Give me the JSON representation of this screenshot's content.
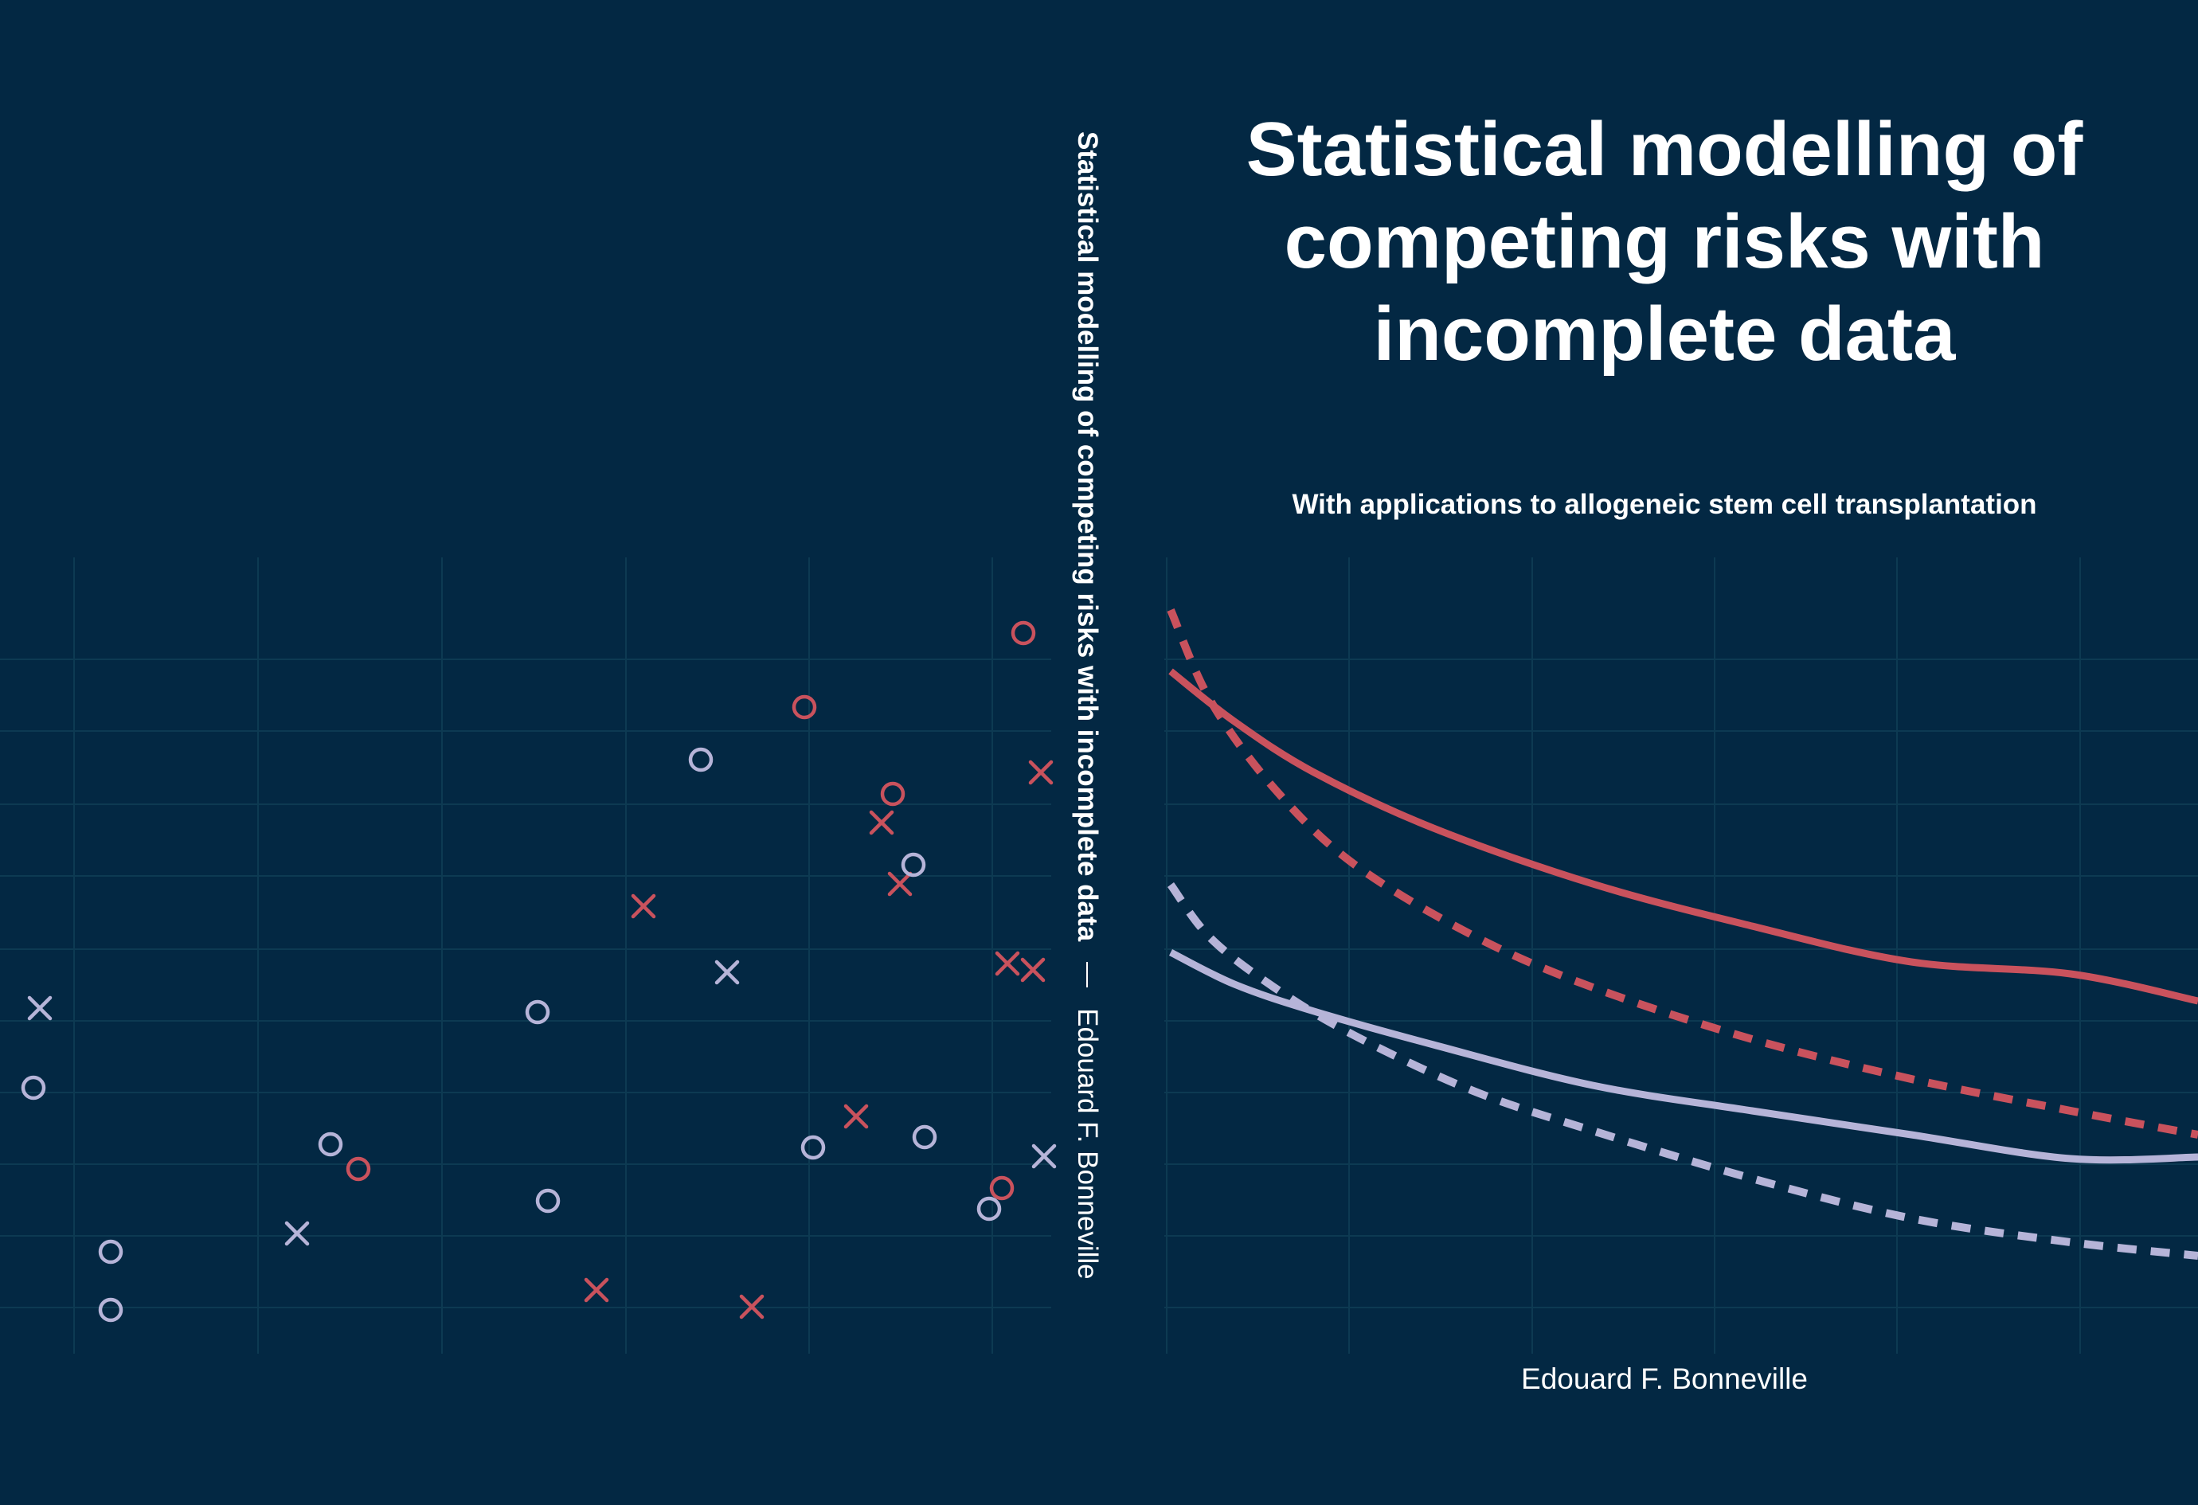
{
  "cover": {
    "title_lines": [
      "Statistical modelling of",
      "competing risks with",
      "incomplete data"
    ],
    "subtitle": "With applications to allogeneic stem cell transplantation",
    "author": "Edouard F. Bonneville",
    "spine": {
      "title": "Statistical modelling of competing risks with incomplete data",
      "author": "Edouard F. Bonneville"
    }
  },
  "colors": {
    "background": "#032843",
    "grid": "#0d3a52",
    "red": "#c9525d",
    "lavender": "#b6b4d8",
    "text": "#ffffff"
  },
  "chart_data": [
    {
      "type": "scatter",
      "series": [
        {
          "color": "red",
          "marker": "o",
          "points": [
            [
              1285,
              795
            ],
            [
              1010,
              888
            ],
            [
              1121,
              997
            ],
            [
              450,
              1468
            ],
            [
              1258,
              1492
            ]
          ]
        },
        {
          "color": "red",
          "marker": "x",
          "points": [
            [
              1307,
              970
            ],
            [
              1107,
              1033
            ],
            [
              1130,
              1110
            ],
            [
              808,
              1138
            ],
            [
              1265,
              1210
            ],
            [
              1297,
              1218
            ],
            [
              1075,
              1402
            ],
            [
              749,
              1620
            ],
            [
              944,
              1641
            ]
          ]
        },
        {
          "color": "lavender",
          "marker": "o",
          "points": [
            [
              880,
              954
            ],
            [
              1147,
              1086
            ],
            [
              675,
              1271
            ],
            [
              42,
              1366
            ],
            [
              415,
              1437
            ],
            [
              1161,
              1428
            ],
            [
              1021,
              1441
            ],
            [
              688,
              1508
            ],
            [
              1242,
              1518
            ],
            [
              139,
              1572
            ],
            [
              139,
              1645
            ]
          ]
        },
        {
          "color": "lavender",
          "marker": "x",
          "points": [
            [
              50,
              1266
            ],
            [
              913,
              1221
            ],
            [
              1311,
              1452
            ],
            [
              373,
              1549
            ]
          ]
        }
      ]
    },
    {
      "type": "line",
      "series": [
        {
          "color": "red",
          "style": "solid",
          "x": [
            1470,
            1550,
            1650,
            1800,
            2000,
            2200,
            2400,
            2600,
            2760
          ],
          "y": [
            843,
            906,
            970,
            1040,
            1110,
            1163,
            1208,
            1223,
            1257
          ]
        },
        {
          "color": "red",
          "style": "dashed",
          "x": [
            1470,
            1520,
            1600,
            1700,
            1850,
            2000,
            2200,
            2400,
            2600,
            2760
          ],
          "y": [
            766,
            880,
            990,
            1085,
            1175,
            1240,
            1305,
            1355,
            1395,
            1425
          ]
        },
        {
          "color": "lavender",
          "style": "solid",
          "x": [
            1470,
            1550,
            1650,
            1800,
            2000,
            2200,
            2400,
            2600,
            2760
          ],
          "y": [
            1196,
            1236,
            1270,
            1312,
            1363,
            1395,
            1425,
            1455,
            1453
          ]
        },
        {
          "color": "lavender",
          "style": "dashed",
          "x": [
            1470,
            1520,
            1600,
            1700,
            1850,
            2000,
            2200,
            2400,
            2600,
            2760
          ],
          "y": [
            1111,
            1178,
            1240,
            1300,
            1370,
            1420,
            1480,
            1530,
            1560,
            1577
          ]
        }
      ]
    }
  ]
}
